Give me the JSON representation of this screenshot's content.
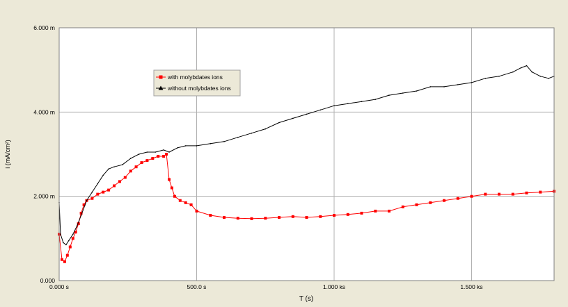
{
  "chart_data": {
    "type": "line",
    "xlabel": "T (s)",
    "ylabel": "i (mA/cm²)",
    "xlim": [
      0,
      1800
    ],
    "ylim": [
      0,
      6
    ],
    "x_ticks": [
      {
        "value": 0,
        "label": "0.000 s"
      },
      {
        "value": 500,
        "label": "500.0 s"
      },
      {
        "value": 1000,
        "label": "1.000 ks"
      },
      {
        "value": 1500,
        "label": "1.500 ks"
      }
    ],
    "y_ticks": [
      {
        "value": 0,
        "label": "0.000"
      },
      {
        "value": 2,
        "label": "2.000 m"
      },
      {
        "value": 4,
        "label": "4.000 m"
      },
      {
        "value": 6,
        "label": "6.000 m"
      }
    ],
    "grid": true,
    "legend_position": "upper-left",
    "series": [
      {
        "name": "with molybdates ions",
        "color": "#ff0000",
        "marker": "square",
        "x": [
          0,
          10,
          20,
          30,
          40,
          50,
          60,
          70,
          80,
          90,
          100,
          120,
          140,
          160,
          180,
          200,
          220,
          240,
          260,
          280,
          300,
          320,
          340,
          360,
          380,
          390,
          400,
          410,
          420,
          440,
          460,
          480,
          500,
          550,
          600,
          650,
          700,
          750,
          800,
          850,
          900,
          950,
          1000,
          1050,
          1100,
          1150,
          1200,
          1250,
          1300,
          1350,
          1400,
          1450,
          1500,
          1550,
          1600,
          1650,
          1700,
          1750,
          1800
        ],
        "y": [
          1.1,
          0.5,
          0.45,
          0.6,
          0.8,
          1.0,
          1.15,
          1.35,
          1.6,
          1.8,
          1.9,
          1.95,
          2.05,
          2.1,
          2.15,
          2.25,
          2.35,
          2.45,
          2.6,
          2.7,
          2.8,
          2.85,
          2.9,
          2.95,
          2.95,
          3.0,
          2.4,
          2.2,
          2.0,
          1.9,
          1.85,
          1.8,
          1.65,
          1.55,
          1.5,
          1.48,
          1.47,
          1.48,
          1.5,
          1.52,
          1.5,
          1.52,
          1.55,
          1.57,
          1.6,
          1.65,
          1.65,
          1.75,
          1.8,
          1.85,
          1.9,
          1.95,
          2.0,
          2.05,
          2.05,
          2.05,
          2.08,
          2.1,
          2.12
        ]
      },
      {
        "name": "without molybdates ions",
        "color": "#000000",
        "marker": "triangle",
        "x": [
          0,
          5,
          15,
          25,
          35,
          50,
          65,
          80,
          100,
          120,
          140,
          160,
          180,
          200,
          230,
          260,
          290,
          320,
          350,
          380,
          400,
          430,
          460,
          500,
          550,
          600,
          650,
          700,
          750,
          800,
          850,
          900,
          950,
          1000,
          1050,
          1100,
          1150,
          1200,
          1250,
          1300,
          1350,
          1400,
          1450,
          1500,
          1550,
          1600,
          1650,
          1680,
          1700,
          1720,
          1750,
          1780,
          1800
        ],
        "y": [
          1.85,
          1.1,
          0.9,
          0.85,
          0.95,
          1.1,
          1.3,
          1.55,
          1.9,
          2.1,
          2.3,
          2.5,
          2.65,
          2.7,
          2.75,
          2.9,
          3.0,
          3.05,
          3.05,
          3.1,
          3.05,
          3.15,
          3.2,
          3.2,
          3.25,
          3.3,
          3.4,
          3.5,
          3.6,
          3.75,
          3.85,
          3.95,
          4.05,
          4.15,
          4.2,
          4.25,
          4.3,
          4.4,
          4.45,
          4.5,
          4.6,
          4.6,
          4.65,
          4.7,
          4.8,
          4.85,
          4.95,
          5.05,
          5.1,
          4.95,
          4.85,
          4.8,
          4.85
        ]
      }
    ]
  }
}
